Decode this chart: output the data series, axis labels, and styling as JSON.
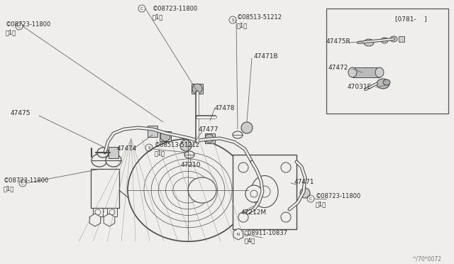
{
  "bg_color": "#f0eeea",
  "line_color": "#4a4a4a",
  "text_color": "#2a2a2a",
  "figsize": [
    6.4,
    3.72
  ],
  "dpi": 100,
  "labels": {
    "top_left_clamp": "©08723-11800\n（1）",
    "top_center_clamp": "©08723-11800\n（1）",
    "top_s_clip": "©08513-51212\n（1）",
    "part_47471B": "47471B",
    "part_47475": "47475",
    "part_47474": "47474",
    "part_47478": "47478",
    "part_47477": "47477",
    "bot_s_clip": "©08513-51212\n（1）",
    "part_47210": "47210",
    "part_47471": "47471",
    "right_clamp": "©08723-11800\n（1）",
    "part_47212M": "47212M",
    "bot_nut": "Ⓝ08911-10837\n（4）",
    "bot_left_clamp": "©08723-11800\n（1）",
    "inset_title": "[0781-    ]",
    "part_47475R": "47475R",
    "part_47472": "47472",
    "part_47031E": "47031E",
    "watermark": "^/70*0072"
  }
}
